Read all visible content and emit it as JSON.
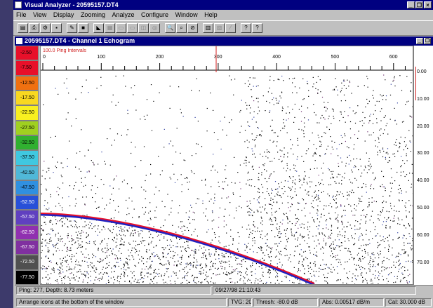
{
  "app": {
    "title": "Visual Analyzer - 20595157.DT4",
    "btn_min": "_",
    "btn_max": "❐",
    "btn_close": "×"
  },
  "menu": [
    "File",
    "View",
    "Display",
    "Zooming",
    "Analyze",
    "Configure",
    "Window",
    "Help"
  ],
  "toolbar": {
    "buttons": [
      {
        "name": "open-icon",
        "glyph": "▤"
      },
      {
        "name": "print-icon",
        "glyph": "⎙"
      },
      {
        "name": "settings-icon",
        "glyph": "⚙"
      },
      {
        "name": "save-icon",
        "glyph": "▪"
      },
      {
        "name": "edit-icon",
        "glyph": "✎"
      },
      {
        "name": "stop-icon",
        "glyph": "■"
      },
      {
        "name": "chart-icon",
        "glyph": "◣"
      },
      {
        "name": "grid-icon",
        "glyph": "▦"
      },
      {
        "name": "region-icon",
        "glyph": "▭"
      },
      {
        "name": "region2-icon",
        "glyph": "▭"
      },
      {
        "name": "region3-icon",
        "glyph": "◫"
      },
      {
        "name": "target-icon",
        "glyph": "◎"
      },
      {
        "name": "zoom-in-icon",
        "glyph": "🔍"
      },
      {
        "name": "zoom-out-icon",
        "glyph": "⌕"
      },
      {
        "name": "no-entry-icon",
        "glyph": "⊘"
      },
      {
        "name": "bars-icon",
        "glyph": "▥"
      },
      {
        "name": "stats-icon",
        "glyph": "▧"
      },
      {
        "name": "pen-icon",
        "glyph": "⁄"
      },
      {
        "name": "help-icon",
        "glyph": "?"
      },
      {
        "name": "context-help-icon",
        "glyph": "?"
      }
    ]
  },
  "echogram": {
    "title": "20595157.DT4 - Channel 1 Echogram",
    "ping_interval_label": "100.0 Ping Intervals",
    "x_ticks": [
      "0",
      "100",
      "200",
      "300",
      "400",
      "500",
      "600"
    ],
    "depth_ticks": [
      "0.00",
      "10.00",
      "20.00",
      "30.00",
      "40.00",
      "50.00",
      "60.00",
      "70.00"
    ],
    "threshold_scale": [
      {
        "label": "-2.50",
        "color": "#e8102a"
      },
      {
        "label": "-7.50",
        "color": "#e8102a"
      },
      {
        "label": "-12.50",
        "color": "#f07010"
      },
      {
        "label": "-17.50",
        "color": "#f8d820"
      },
      {
        "label": "-22.50",
        "color": "#f8f020"
      },
      {
        "label": "-27.50",
        "color": "#a0d020"
      },
      {
        "label": "-32.50",
        "color": "#30b030"
      },
      {
        "label": "-37.50",
        "color": "#40c8e0"
      },
      {
        "label": "-42.50",
        "color": "#50b8d8"
      },
      {
        "label": "-47.50",
        "color": "#3090e0"
      },
      {
        "label": "-52.50",
        "color": "#2850d8"
      },
      {
        "label": "-57.50",
        "color": "#6040c0"
      },
      {
        "label": "-62.50",
        "color": "#9030b0"
      },
      {
        "label": "-67.50",
        "color": "#8030a0"
      },
      {
        "label": "-72.50",
        "color": "#505050"
      },
      {
        "label": "-77.50",
        "color": "#000000"
      }
    ],
    "bottom_line_color": "#e8102a",
    "bottom_line_shadow": "#2020c0"
  },
  "child_status": {
    "ping_depth": "Ping: 277, Depth: 8.73 meters",
    "timestamp": "09/27/98 21:10:43"
  },
  "statusbar": {
    "message": "Arrange icons at the bottom of the window",
    "tvg": "TVG: 20",
    "thresh": "Thresh: -80.0 dB",
    "abs": "Abs: 0.00517 dB/m",
    "cal": "Cal: 30.000 dB"
  }
}
